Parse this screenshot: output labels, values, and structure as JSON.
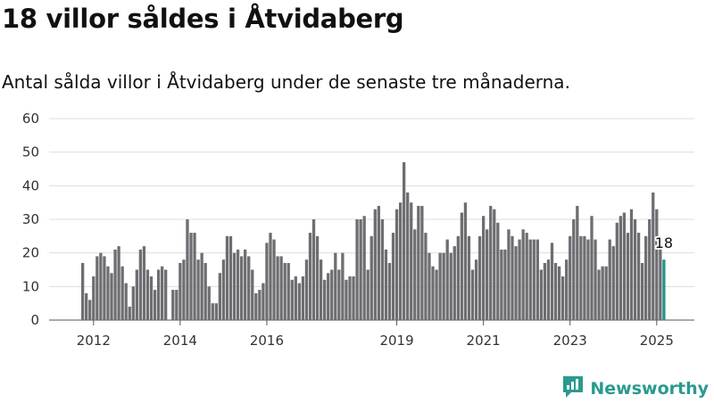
{
  "header": {
    "title": "18 villor såldes i Åtvidaberg",
    "subtitle": "Antal sålda villor i Åtvidaberg under de senaste tre månaderna."
  },
  "brand": {
    "name": "Newsworthy"
  },
  "colors": {
    "bar": "#6e6d72",
    "highlight": "#23958c",
    "grid": "#dddddd",
    "brand": "#2a9a8f"
  },
  "chart_data": {
    "type": "bar",
    "title": "18 villor såldes i Åtvidaberg",
    "subtitle": "Antal sålda villor i Åtvidaberg under de senaste tre månaderna.",
    "xlabel": "",
    "ylabel": "",
    "ylim": [
      0,
      60
    ],
    "yticks": [
      0,
      10,
      20,
      30,
      40,
      50,
      60
    ],
    "xticks": [
      {
        "label": "2012",
        "index": 3
      },
      {
        "label": "2014",
        "index": 27
      },
      {
        "label": "2016",
        "index": 51
      },
      {
        "label": "2019",
        "index": 87
      },
      {
        "label": "2021",
        "index": 111
      },
      {
        "label": "2023",
        "index": 135
      },
      {
        "label": "2025",
        "index": 159
      }
    ],
    "start": "2011-10",
    "interval": "monthly, rolling three-month total",
    "grid": true,
    "highlight_label": "18",
    "values": [
      17,
      8,
      6,
      13,
      19,
      20,
      19,
      16,
      14,
      21,
      22,
      16,
      11,
      4,
      10,
      15,
      21,
      22,
      15,
      13,
      9,
      15,
      16,
      15,
      0,
      9,
      9,
      17,
      18,
      30,
      26,
      26,
      18,
      20,
      17,
      10,
      5,
      5,
      14,
      18,
      25,
      25,
      20,
      21,
      19,
      21,
      19,
      15,
      8,
      9,
      11,
      23,
      26,
      24,
      19,
      19,
      17,
      17,
      12,
      13,
      11,
      13,
      18,
      26,
      30,
      25,
      18,
      12,
      14,
      15,
      20,
      15,
      20,
      12,
      13,
      13,
      30,
      30,
      31,
      15,
      25,
      33,
      34,
      30,
      21,
      17,
      26,
      33,
      35,
      47,
      38,
      35,
      27,
      34,
      34,
      26,
      20,
      16,
      15,
      20,
      20,
      24,
      20,
      22,
      25,
      32,
      35,
      25,
      15,
      18,
      25,
      31,
      27,
      34,
      33,
      29,
      21,
      21,
      27,
      25,
      22,
      24,
      27,
      26,
      24,
      24,
      24,
      15,
      17,
      18,
      23,
      17,
      16,
      13,
      18,
      25,
      30,
      34,
      25,
      25,
      24,
      31,
      24,
      15,
      16,
      16,
      24,
      22,
      29,
      31,
      32,
      26,
      33,
      30,
      26,
      17,
      25,
      30,
      38,
      33,
      22,
      18
    ]
  }
}
